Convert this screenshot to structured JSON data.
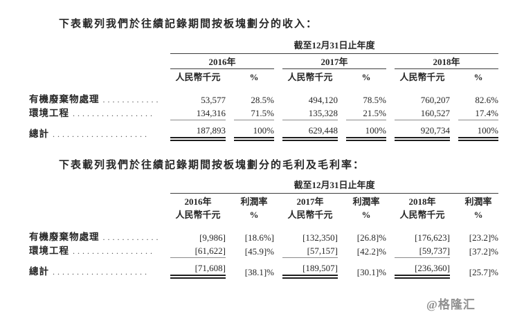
{
  "intro_revenue": "下表載列我們於往績記錄期間按板塊劃分的收入：",
  "intro_margin": "下表載列我們於往績記錄期間按板塊劃分的毛利及毛利率：",
  "watermark": "@格隆汇",
  "table1": {
    "period_header": "截至12月31日止年度",
    "years": [
      "2016年",
      "2017年",
      "2018年"
    ],
    "subheaders": [
      "人民幣千元",
      "%",
      "人民幣千元",
      "%",
      "人民幣千元",
      "%"
    ],
    "rows": [
      {
        "label": "有機廢棄物處理",
        "leader": "............",
        "values": [
          "53,577",
          "28.5%",
          "494,120",
          "78.5%",
          "760,207",
          "82.6%"
        ]
      },
      {
        "label": "環境工程",
        "leader": ".................",
        "values": [
          "134,316",
          "71.5%",
          "135,328",
          "21.5%",
          "160,527",
          "17.4%"
        ]
      }
    ],
    "total": {
      "label": "總計",
      "leader": "....................",
      "values": [
        "187,893",
        "100%",
        "629,448",
        "100%",
        "920,734",
        "100%"
      ]
    }
  },
  "table2": {
    "period_header": "截至12月31日止年度",
    "year_row": [
      "2016年",
      "利潤率",
      "2017年",
      "利潤率",
      "2018年",
      "利潤率"
    ],
    "subheaders": [
      "人民幣千元",
      "%",
      "人民幣千元",
      "%",
      "人民幣千元",
      "%"
    ],
    "rows": [
      {
        "label": "有機廢棄物處理",
        "leader": "............",
        "values": [
          "[9,986]",
          "[18.6%]",
          "[132,350]",
          "[26.8]%",
          "[176,623]",
          "[23.2]%"
        ]
      },
      {
        "label": "環境工程",
        "leader": ".................",
        "values": [
          "[61,622]",
          "[45.9]%",
          "[57,157]",
          "[42.2]%",
          "[59,737]",
          "[37.2]%"
        ]
      }
    ],
    "total": {
      "label": "總計",
      "leader": "....................",
      "values": [
        "[71,608]",
        "[38.1]%",
        "[189,507]",
        "[30.1]%",
        "[236,360]",
        "[25.7]%"
      ]
    }
  }
}
